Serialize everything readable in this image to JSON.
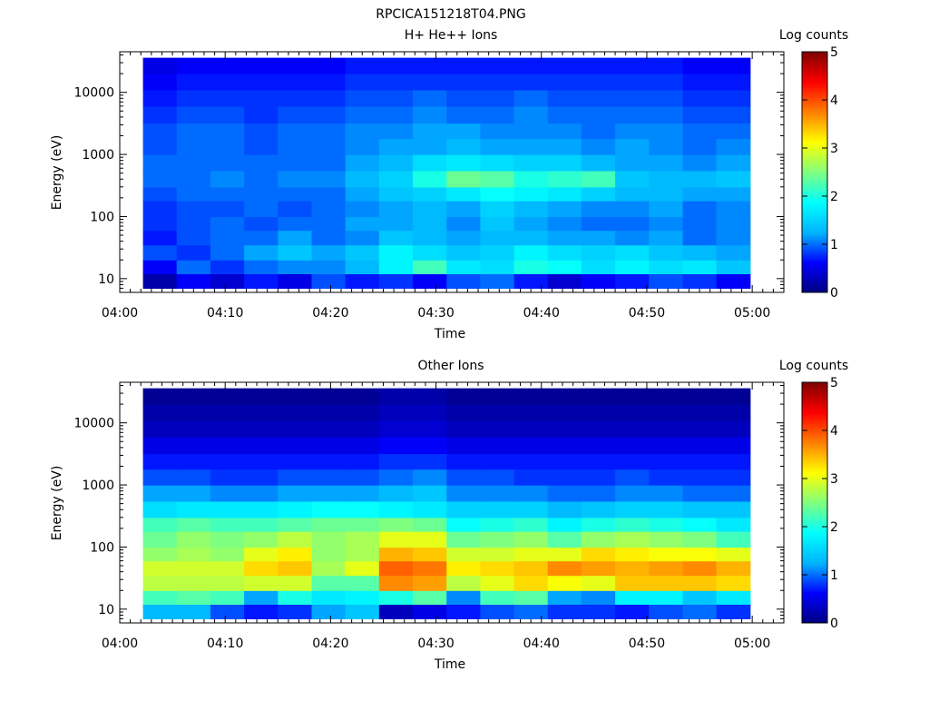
{
  "figure_title": "RPCICA151218T04.PNG",
  "colors": {
    "colormap": [
      "#000080",
      "#0000ff",
      "#00b4ff",
      "#00ffff",
      "#7fff7f",
      "#ffff00",
      "#ff8000",
      "#ff0000",
      "#800000"
    ],
    "empty_bin": "#ffffff",
    "axis": "#000000"
  },
  "chart_data": [
    {
      "type": "heatmap",
      "title": "H+ He++ Ions",
      "xlabel": "Time",
      "ylabel": "Energy (eV)",
      "x_ticks": [
        "04:00",
        "04:10",
        "04:20",
        "04:30",
        "04:40",
        "04:50",
        "05:00"
      ],
      "xlim_minutes": [
        0,
        63
      ],
      "y_scale": "log",
      "ylim": [
        6,
        45000
      ],
      "y_ticks": [
        "10",
        "100",
        "1000",
        "10000"
      ],
      "colorbar": {
        "label": "Log counts",
        "ticks": [
          "0",
          "1",
          "2",
          "3",
          "4",
          "5"
        ],
        "range": [
          0,
          5
        ]
      },
      "time_bins_start_minutes": [
        2.2,
        5.4,
        8.6,
        11.8,
        15.0,
        18.2,
        21.4,
        24.6,
        27.8,
        31.0,
        34.2,
        37.4,
        40.6,
        43.8,
        47.0,
        50.2,
        53.4,
        56.6,
        59.8
      ],
      "energy_bands_eV": [
        7,
        12,
        20,
        35,
        60,
        100,
        180,
        300,
        550,
        1000,
        1800,
        3200,
        6000,
        11000,
        20000,
        36000
      ],
      "log_counts": [
        [
          0.2,
          0.6,
          0.4,
          0.7,
          0.5,
          0.9,
          0.7,
          0.8,
          0.6,
          0.9,
          1.0,
          0.7,
          0.4,
          0.6,
          0.7,
          0.9,
          0.8,
          0.6
        ],
        [
          0.6,
          1.0,
          0.8,
          1.0,
          1.1,
          1.1,
          1.3,
          1.8,
          2.2,
          1.7,
          1.6,
          2.0,
          1.9,
          1.6,
          1.8,
          1.6,
          1.7,
          1.4
        ],
        [
          0.9,
          0.8,
          1.0,
          1.2,
          1.4,
          1.2,
          1.4,
          1.8,
          1.6,
          1.4,
          1.5,
          1.8,
          1.6,
          1.5,
          1.6,
          1.4,
          1.3,
          1.2
        ],
        [
          0.7,
          0.9,
          1.0,
          1.0,
          1.2,
          1.0,
          1.1,
          1.4,
          1.3,
          1.2,
          1.3,
          1.3,
          1.2,
          1.2,
          1.1,
          1.2,
          1.0,
          1.1
        ],
        [
          0.8,
          0.9,
          1.0,
          0.9,
          1.0,
          1.0,
          1.2,
          1.2,
          1.3,
          1.1,
          1.4,
          1.2,
          1.1,
          1.0,
          1.0,
          1.1,
          1.0,
          1.1
        ],
        [
          0.8,
          0.9,
          0.9,
          1.0,
          0.9,
          1.0,
          1.1,
          1.2,
          1.3,
          1.2,
          1.5,
          1.3,
          1.2,
          1.1,
          1.1,
          1.2,
          1.0,
          1.1
        ],
        [
          0.9,
          1.0,
          1.0,
          1.0,
          1.0,
          1.0,
          1.2,
          1.4,
          1.5,
          1.7,
          1.9,
          1.8,
          1.7,
          1.5,
          1.3,
          1.3,
          1.2,
          1.2
        ],
        [
          1.0,
          1.0,
          1.1,
          1.0,
          1.1,
          1.1,
          1.3,
          1.5,
          2.0,
          2.4,
          2.3,
          2.0,
          2.1,
          2.2,
          1.4,
          1.3,
          1.3,
          1.4
        ],
        [
          1.0,
          1.0,
          1.0,
          1.0,
          1.0,
          1.0,
          1.2,
          1.3,
          1.6,
          1.7,
          1.6,
          1.5,
          1.5,
          1.3,
          1.2,
          1.2,
          1.1,
          1.2
        ],
        [
          0.9,
          1.0,
          1.0,
          0.9,
          1.0,
          1.0,
          1.1,
          1.2,
          1.2,
          1.3,
          1.2,
          1.2,
          1.2,
          1.1,
          1.2,
          1.1,
          1.0,
          1.1
        ],
        [
          0.9,
          1.0,
          1.0,
          0.9,
          1.0,
          1.0,
          1.1,
          1.1,
          1.2,
          1.2,
          1.1,
          1.1,
          1.1,
          1.0,
          1.1,
          1.1,
          1.0,
          1.0
        ],
        [
          0.8,
          0.9,
          0.9,
          0.8,
          0.9,
          0.9,
          1.0,
          1.0,
          1.1,
          1.0,
          1.0,
          1.1,
          1.0,
          1.0,
          1.0,
          1.0,
          0.9,
          0.9
        ],
        [
          0.7,
          0.8,
          0.8,
          0.8,
          0.8,
          0.8,
          0.9,
          0.9,
          1.0,
          0.9,
          0.9,
          1.0,
          0.9,
          0.9,
          0.9,
          0.9,
          0.8,
          0.8
        ],
        [
          0.6,
          0.7,
          0.7,
          0.7,
          0.7,
          0.7,
          0.8,
          0.8,
          0.8,
          0.8,
          0.8,
          0.8,
          0.8,
          0.8,
          0.8,
          0.8,
          0.7,
          0.7
        ],
        [
          0.5,
          0.6,
          0.6,
          0.6,
          0.6,
          0.6,
          0.7,
          0.7,
          0.7,
          0.7,
          0.7,
          0.7,
          0.7,
          0.7,
          0.7,
          0.7,
          0.6,
          0.6
        ]
      ]
    },
    {
      "type": "heatmap",
      "title": "Other Ions",
      "xlabel": "Time",
      "ylabel": "Energy (eV)",
      "x_ticks": [
        "04:00",
        "04:10",
        "04:20",
        "04:30",
        "04:40",
        "04:50",
        "05:00"
      ],
      "xlim_minutes": [
        0,
        63
      ],
      "y_scale": "log",
      "ylim": [
        6,
        45000
      ],
      "y_ticks": [
        "10",
        "100",
        "1000",
        "10000"
      ],
      "colorbar": {
        "label": "Log counts",
        "ticks": [
          "0",
          "1",
          "2",
          "3",
          "4",
          "5"
        ],
        "range": [
          0,
          5
        ]
      },
      "time_bins_start_minutes": [
        2.2,
        5.4,
        8.6,
        11.8,
        15.0,
        18.2,
        21.4,
        24.6,
        27.8,
        31.0,
        34.2,
        37.4,
        40.6,
        43.8,
        47.0,
        50.2,
        53.4,
        56.6,
        59.8
      ],
      "energy_bands_eV": [
        7,
        12,
        20,
        35,
        60,
        100,
        180,
        300,
        550,
        1000,
        1800,
        3200,
        6000,
        11000,
        20000,
        36000
      ],
      "log_counts": [
        [
          1.3,
          1.3,
          0.9,
          0.7,
          0.8,
          1.2,
          1.4,
          0.3,
          0.5,
          0.7,
          0.9,
          1.0,
          0.8,
          0.8,
          0.7,
          0.9,
          1.0,
          0.8
        ],
        [
          2.2,
          2.3,
          2.2,
          1.2,
          2.0,
          1.7,
          1.8,
          2.0,
          2.3,
          1.1,
          2.2,
          2.3,
          1.2,
          1.1,
          1.8,
          1.8,
          1.4,
          1.7
        ],
        [
          2.8,
          2.8,
          2.8,
          2.9,
          2.9,
          2.3,
          2.3,
          3.7,
          3.6,
          2.8,
          3.0,
          3.3,
          3.1,
          3.0,
          3.4,
          3.4,
          3.4,
          3.3
        ],
        [
          2.9,
          2.9,
          2.9,
          3.3,
          3.4,
          2.7,
          3.0,
          3.9,
          3.8,
          3.2,
          3.3,
          3.4,
          3.7,
          3.6,
          3.5,
          3.6,
          3.7,
          3.5
        ],
        [
          2.6,
          2.7,
          2.6,
          3.0,
          3.2,
          2.6,
          2.7,
          3.5,
          3.4,
          2.9,
          2.9,
          3.0,
          3.0,
          3.3,
          3.2,
          3.1,
          3.1,
          3.0
        ],
        [
          2.4,
          2.6,
          2.5,
          2.6,
          2.8,
          2.6,
          2.7,
          3.0,
          3.0,
          2.4,
          2.5,
          2.6,
          2.3,
          2.6,
          2.7,
          2.6,
          2.5,
          2.2
        ],
        [
          2.2,
          2.3,
          2.2,
          2.2,
          2.3,
          2.4,
          2.4,
          2.5,
          2.4,
          1.9,
          2.0,
          2.1,
          1.8,
          2.0,
          2.1,
          2.0,
          1.9,
          1.7
        ],
        [
          1.6,
          1.7,
          1.7,
          1.7,
          1.8,
          1.9,
          1.9,
          1.8,
          1.7,
          1.5,
          1.5,
          1.5,
          1.3,
          1.4,
          1.5,
          1.5,
          1.4,
          1.4
        ],
        [
          1.2,
          1.2,
          1.1,
          1.1,
          1.2,
          1.2,
          1.2,
          1.3,
          1.4,
          1.1,
          1.1,
          1.1,
          1.0,
          1.0,
          1.1,
          1.1,
          1.0,
          1.0
        ],
        [
          0.9,
          0.9,
          0.8,
          0.8,
          0.9,
          0.9,
          0.9,
          1.0,
          1.1,
          0.9,
          0.9,
          0.8,
          0.8,
          0.8,
          0.9,
          0.8,
          0.8,
          0.8
        ],
        [
          0.7,
          0.7,
          0.7,
          0.7,
          0.7,
          0.7,
          0.7,
          0.8,
          0.8,
          0.7,
          0.7,
          0.7,
          0.7,
          0.7,
          0.7,
          0.7,
          0.7,
          0.7
        ],
        [
          0.5,
          0.5,
          0.5,
          0.5,
          0.5,
          0.5,
          0.5,
          0.6,
          0.6,
          0.5,
          0.5,
          0.5,
          0.5,
          0.5,
          0.5,
          0.5,
          0.5,
          0.5
        ],
        [
          0.3,
          0.3,
          0.3,
          0.3,
          0.3,
          0.3,
          0.3,
          0.4,
          0.4,
          0.3,
          0.3,
          0.3,
          0.3,
          0.3,
          0.3,
          0.3,
          0.3,
          0.3
        ],
        [
          0.2,
          0.2,
          0.2,
          0.2,
          0.2,
          0.2,
          0.2,
          0.3,
          0.3,
          0.2,
          0.2,
          0.2,
          0.2,
          0.2,
          0.2,
          0.2,
          0.2,
          0.2
        ],
        [
          0.1,
          0.1,
          0.1,
          0.1,
          0.1,
          0.1,
          0.1,
          0.2,
          0.2,
          0.1,
          0.1,
          0.1,
          0.1,
          0.1,
          0.1,
          0.1,
          0.1,
          0.1
        ]
      ]
    }
  ]
}
